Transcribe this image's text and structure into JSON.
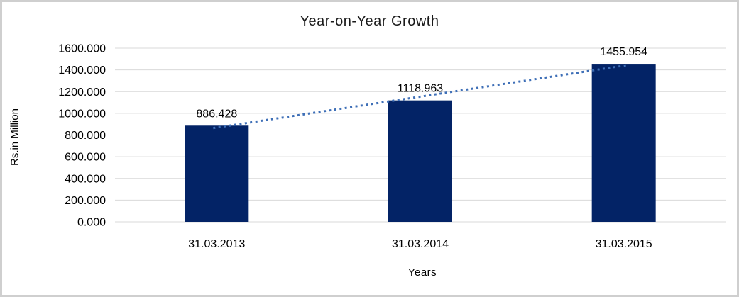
{
  "chart_data": {
    "type": "bar",
    "title": "Year-on-Year Growth",
    "xlabel": "Years",
    "ylabel": "Rs.in Million",
    "categories": [
      "31.03.2013",
      "31.03.2014",
      "31.03.2015"
    ],
    "values": [
      886.428,
      1118.963,
      1455.954
    ],
    "data_labels": [
      "886.428",
      "1118.963",
      "1455.954"
    ],
    "ylim": [
      0,
      1600
    ],
    "yticks": {
      "values": [
        0,
        200,
        400,
        600,
        800,
        1000,
        1200,
        1400,
        1600
      ],
      "labels": [
        "0.000",
        "200.000",
        "400.000",
        "600.000",
        "800.000",
        "1000.000",
        "1200.000",
        "1400.000",
        "1600.000"
      ]
    },
    "grid": "horizontal",
    "legend": "none",
    "trendline": {
      "type": "linear",
      "style": "dotted"
    },
    "colors": {
      "bar": "#032366",
      "trendline": "#3e6fb7",
      "gridline": "#d9d9d9",
      "text": "#000000",
      "frame_border": "#cfcfcf",
      "background": "#ffffff"
    }
  }
}
